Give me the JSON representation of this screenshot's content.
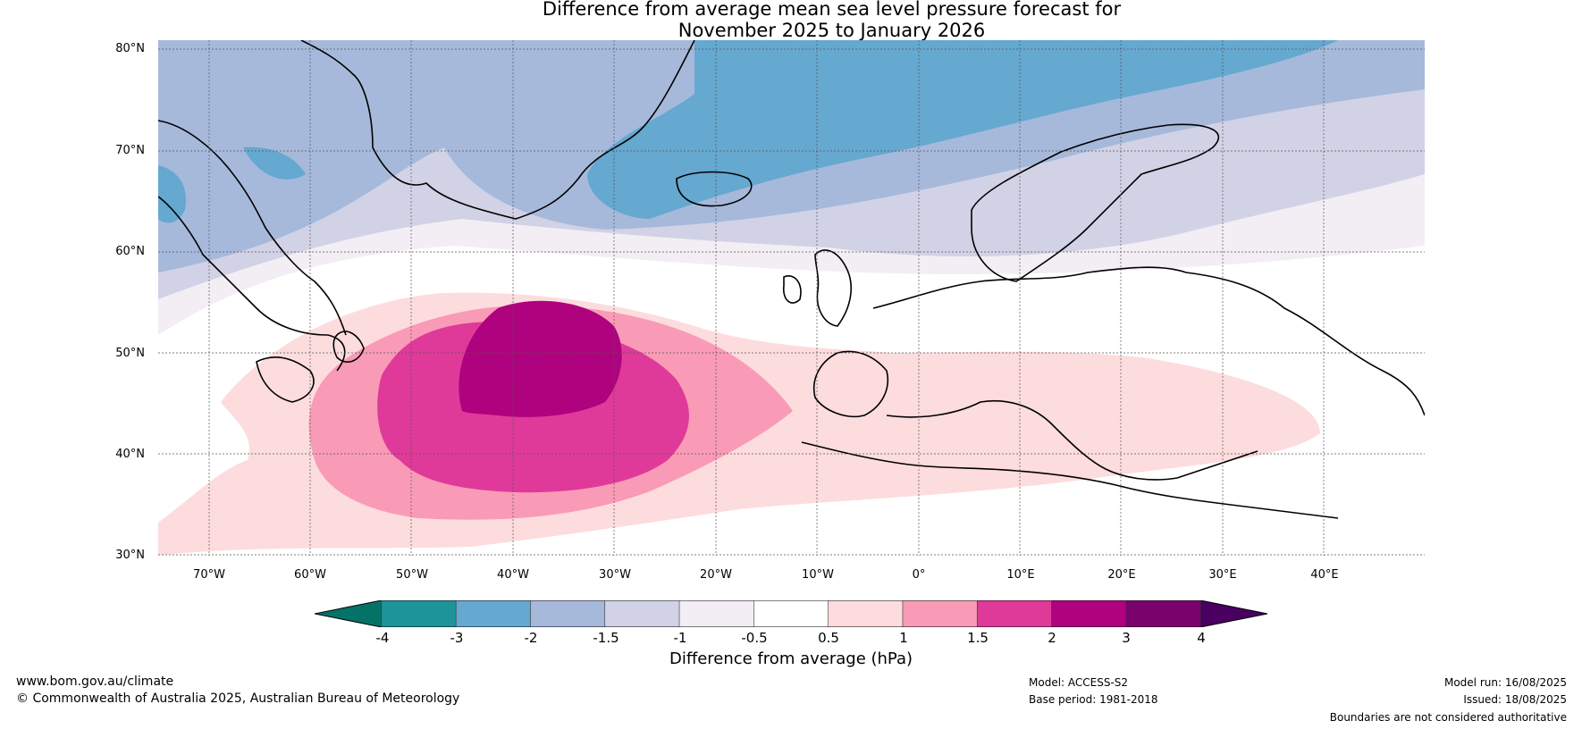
{
  "title_line1": "Difference from average mean sea level pressure forecast for",
  "title_line2": "November 2025 to January 2026",
  "lat_labels": [
    "80°N",
    "70°N",
    "60°N",
    "50°N",
    "40°N",
    "30°N"
  ],
  "lon_labels": [
    "70°W",
    "60°W",
    "50°W",
    "40°W",
    "30°W",
    "20°W",
    "10°W",
    "0°",
    "10°E",
    "20°E",
    "30°E",
    "40°E"
  ],
  "colorbar": {
    "ticks": [
      "-4",
      "-3",
      "-2",
      "-1.5",
      "-1",
      "-0.5",
      "0.5",
      "1",
      "1.5",
      "2",
      "3",
      "4"
    ],
    "colors": [
      "#047267",
      "#1d9499",
      "#65a8d0",
      "#a6b9db",
      "#d2d2e6",
      "#f2eef4",
      "#ffffff",
      "#fddcde",
      "#f99bb6",
      "#df3a99",
      "#ae027e",
      "#79026d",
      "#4a0060"
    ],
    "label": "Difference from average (hPa)"
  },
  "map_extent": {
    "lon_min": -75,
    "lon_max": 50,
    "lat_min": 30,
    "lat_max": 81
  },
  "footer": {
    "website": "www.bom.gov.au/climate",
    "copyright": "© Commonwealth of Australia 2025, Australian Bureau of Meteorology",
    "model": "Model: ACCESS-S2",
    "base_period": "Base period: 1981-2018",
    "model_run": "Model run: 16/08/2025",
    "issued": "Issued: 18/08/2025",
    "disclaimer": "Boundaries are not considered authoritative"
  }
}
